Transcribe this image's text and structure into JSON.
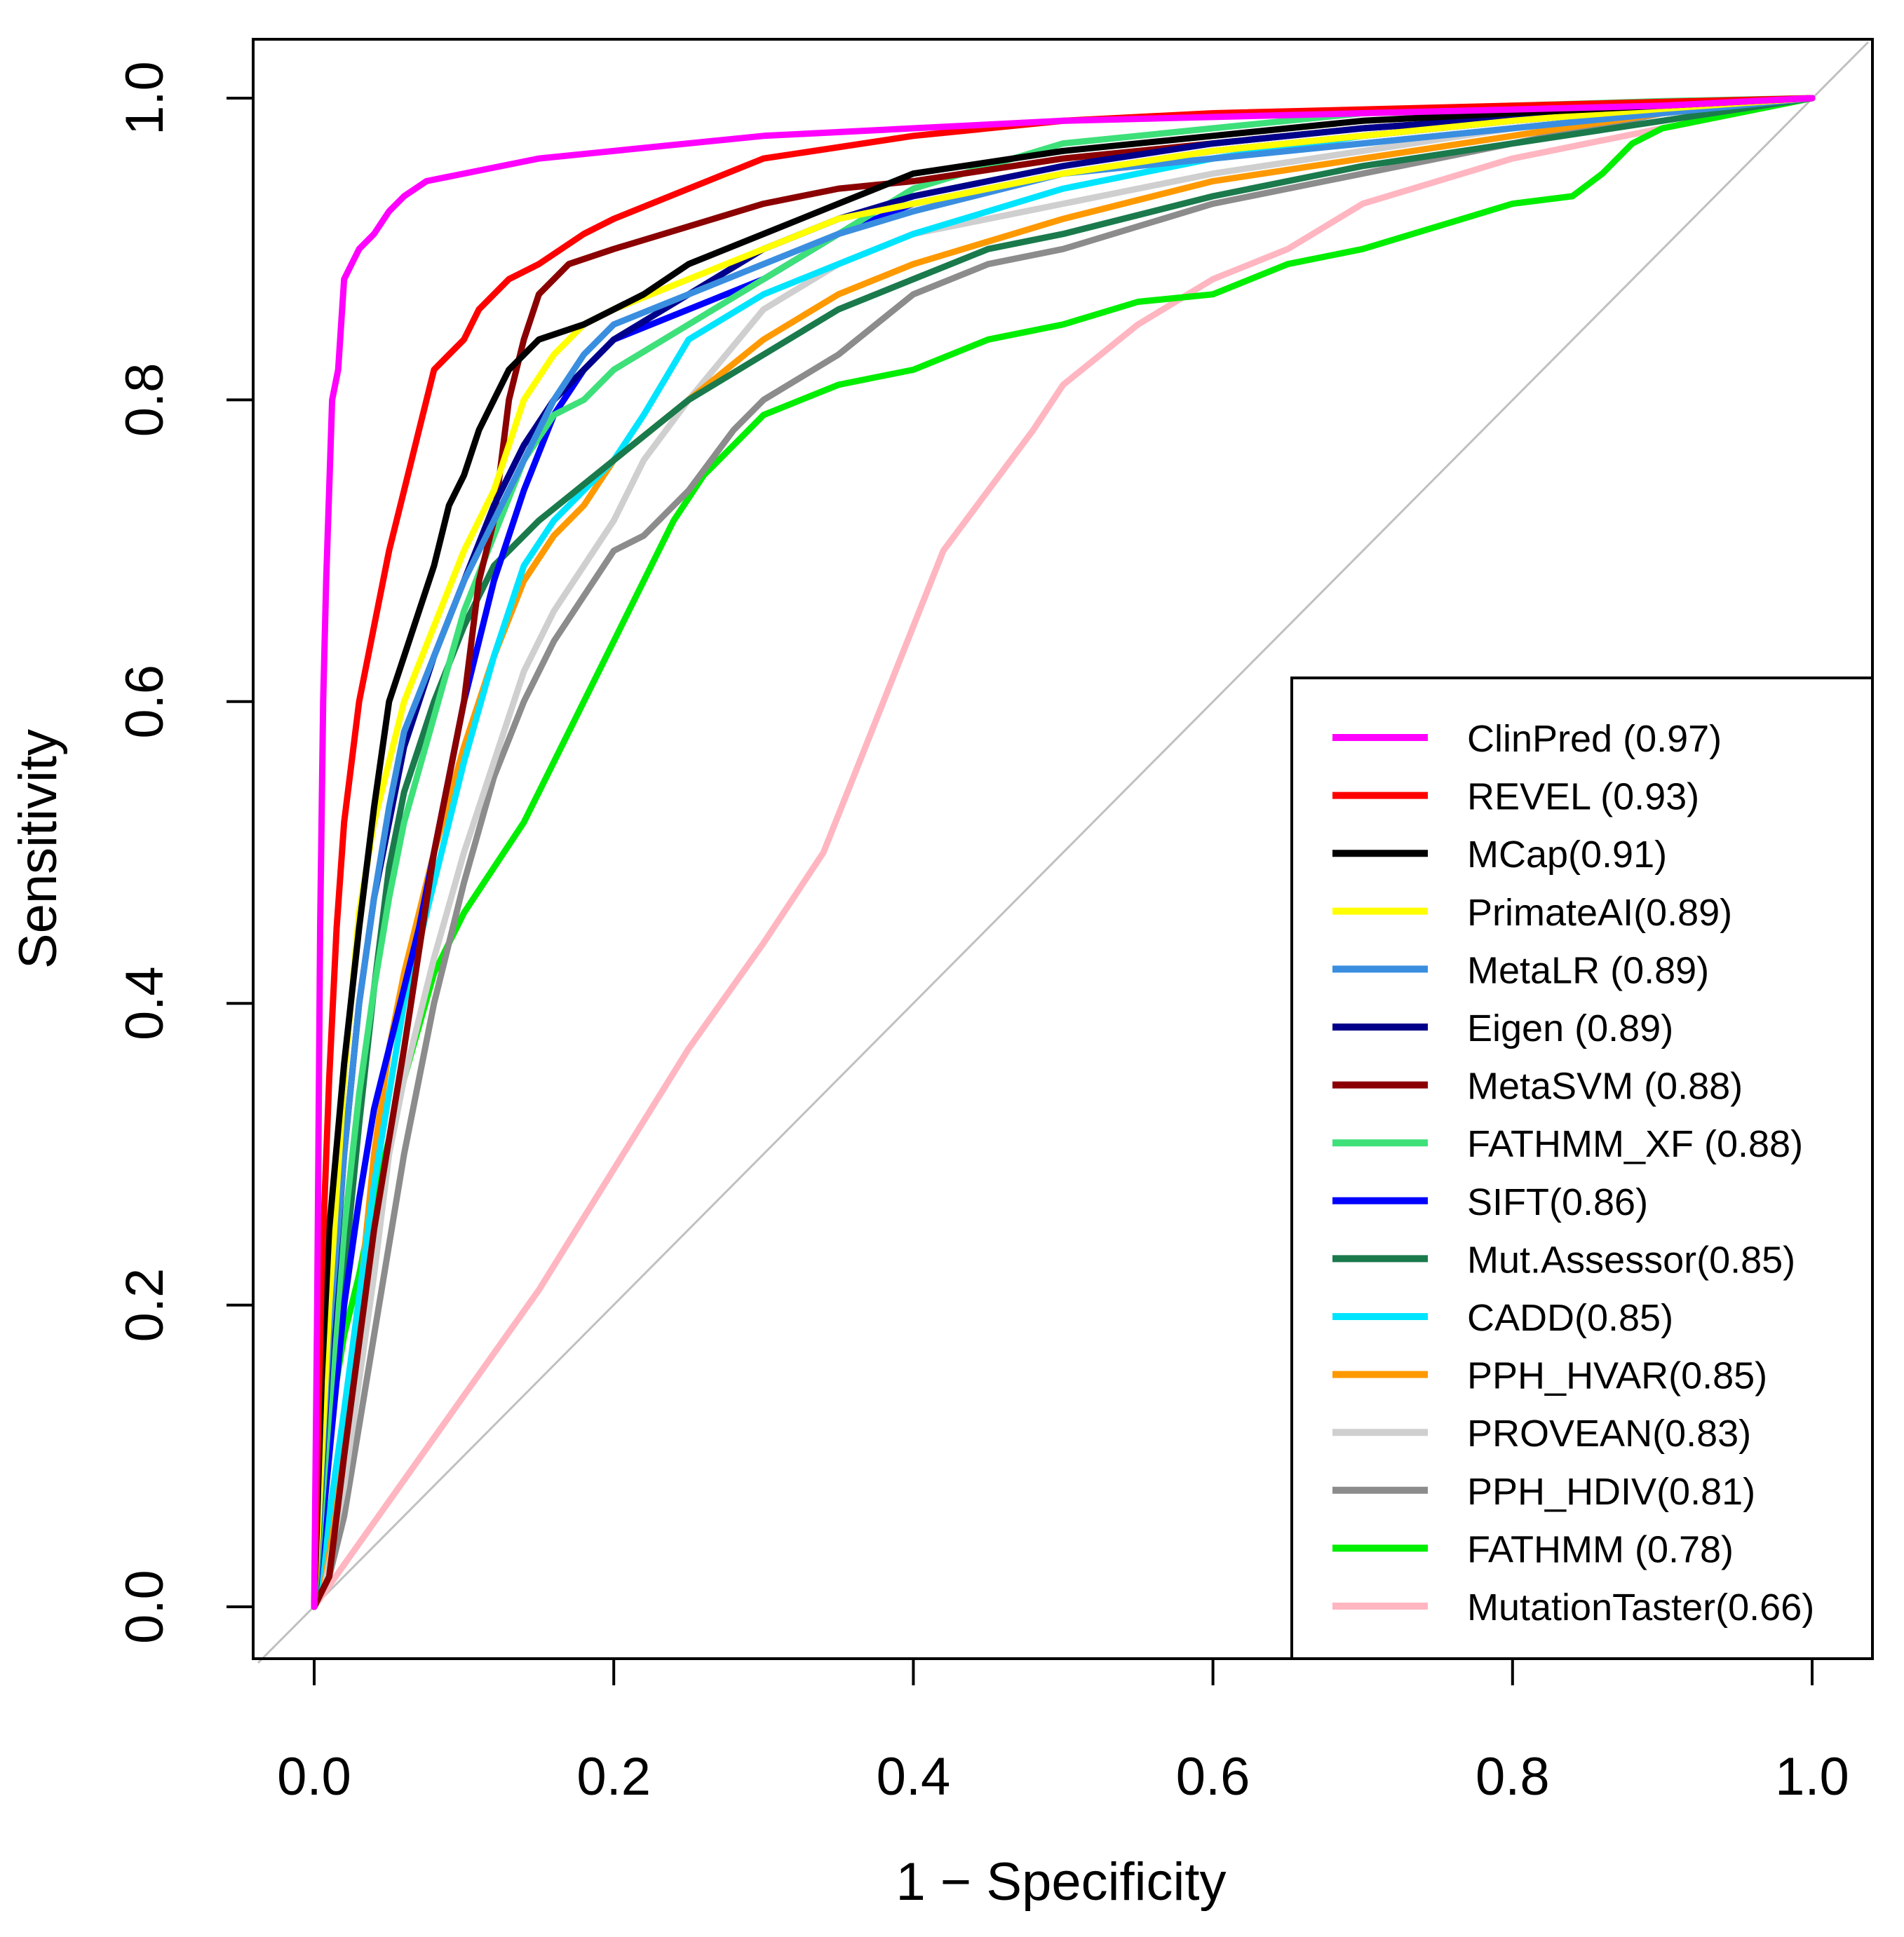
{
  "chart_data": {
    "type": "line",
    "title": "",
    "xlabel": "1 − Specificity",
    "ylabel": "Sensitivity",
    "xlim": [
      -0.04,
      1.04
    ],
    "ylim": [
      -0.04,
      1.04
    ],
    "x_ticks": [
      "0.0",
      "0.2",
      "0.4",
      "0.6",
      "0.8",
      "1.0"
    ],
    "y_ticks": [
      "0.0",
      "0.2",
      "0.4",
      "0.6",
      "0.8",
      "1.0"
    ],
    "grid": false,
    "legend_position": "bottom-right",
    "reference_line": {
      "x": [
        0,
        1
      ],
      "y": [
        0,
        1
      ],
      "color": "#c0c0c0"
    },
    "series": [
      {
        "name": "ClinPred (0.97)",
        "color": "#ff00ff",
        "x": [
          0,
          0.002,
          0.004,
          0.006,
          0.008,
          0.012,
          0.016,
          0.02,
          0.03,
          0.04,
          0.05,
          0.06,
          0.075,
          0.1,
          0.15,
          0.2,
          0.3,
          0.4,
          0.5,
          0.7,
          0.9,
          1.0
        ],
        "y": [
          0,
          0.2,
          0.45,
          0.6,
          0.68,
          0.8,
          0.82,
          0.88,
          0.9,
          0.91,
          0.925,
          0.935,
          0.945,
          0.95,
          0.96,
          0.965,
          0.975,
          0.98,
          0.985,
          0.99,
          0.995,
          1.0
        ]
      },
      {
        "name": "REVEL (0.93)",
        "color": "#ff0000",
        "x": [
          0,
          0.005,
          0.01,
          0.015,
          0.02,
          0.03,
          0.04,
          0.05,
          0.06,
          0.07,
          0.08,
          0.09,
          0.1,
          0.11,
          0.13,
          0.15,
          0.18,
          0.2,
          0.25,
          0.3,
          0.4,
          0.5,
          0.6,
          0.8,
          1.0
        ],
        "y": [
          0,
          0.22,
          0.35,
          0.45,
          0.52,
          0.6,
          0.65,
          0.7,
          0.74,
          0.78,
          0.82,
          0.83,
          0.84,
          0.86,
          0.88,
          0.89,
          0.91,
          0.92,
          0.94,
          0.96,
          0.975,
          0.985,
          0.99,
          0.995,
          1.0
        ]
      },
      {
        "name": "MCap(0.91)",
        "color": "#000000",
        "x": [
          0,
          0.005,
          0.01,
          0.02,
          0.03,
          0.04,
          0.05,
          0.06,
          0.07,
          0.08,
          0.09,
          0.1,
          0.11,
          0.12,
          0.13,
          0.15,
          0.18,
          0.2,
          0.22,
          0.25,
          0.3,
          0.35,
          0.4,
          0.5,
          0.6,
          0.7,
          0.8,
          0.9,
          1.0
        ],
        "y": [
          0,
          0.15,
          0.25,
          0.36,
          0.45,
          0.53,
          0.6,
          0.63,
          0.66,
          0.69,
          0.73,
          0.75,
          0.78,
          0.8,
          0.82,
          0.84,
          0.85,
          0.86,
          0.87,
          0.89,
          0.91,
          0.93,
          0.95,
          0.965,
          0.975,
          0.985,
          0.99,
          0.995,
          1.0
        ]
      },
      {
        "name": "PrimateAI(0.89)",
        "color": "#ffff00",
        "x": [
          0,
          0.01,
          0.02,
          0.03,
          0.04,
          0.05,
          0.06,
          0.08,
          0.1,
          0.12,
          0.14,
          0.16,
          0.18,
          0.2,
          0.25,
          0.3,
          0.35,
          0.4,
          0.5,
          0.6,
          0.7,
          0.8,
          0.9,
          1.0
        ],
        "y": [
          0,
          0.2,
          0.35,
          0.46,
          0.52,
          0.56,
          0.6,
          0.65,
          0.7,
          0.74,
          0.8,
          0.83,
          0.85,
          0.86,
          0.88,
          0.9,
          0.92,
          0.93,
          0.95,
          0.965,
          0.975,
          0.985,
          0.993,
          1.0
        ]
      },
      {
        "name": "MetaLR (0.89)",
        "color": "#3a8ee0",
        "x": [
          0,
          0.01,
          0.02,
          0.03,
          0.04,
          0.05,
          0.06,
          0.08,
          0.1,
          0.12,
          0.14,
          0.16,
          0.18,
          0.2,
          0.25,
          0.3,
          0.35,
          0.4,
          0.5,
          0.6,
          0.7,
          0.8,
          0.9,
          1.0
        ],
        "y": [
          0,
          0.18,
          0.3,
          0.4,
          0.47,
          0.53,
          0.58,
          0.63,
          0.68,
          0.72,
          0.76,
          0.8,
          0.83,
          0.85,
          0.87,
          0.89,
          0.91,
          0.925,
          0.95,
          0.96,
          0.97,
          0.98,
          0.99,
          1.0
        ]
      },
      {
        "name": "Eigen (0.89)",
        "color": "#00008b",
        "x": [
          0,
          0.01,
          0.02,
          0.03,
          0.04,
          0.05,
          0.06,
          0.08,
          0.1,
          0.12,
          0.14,
          0.16,
          0.18,
          0.2,
          0.25,
          0.3,
          0.35,
          0.4,
          0.5,
          0.6,
          0.7,
          0.8,
          0.9,
          1.0
        ],
        "y": [
          0,
          0.17,
          0.3,
          0.4,
          0.47,
          0.52,
          0.57,
          0.63,
          0.68,
          0.73,
          0.77,
          0.8,
          0.82,
          0.84,
          0.87,
          0.9,
          0.92,
          0.935,
          0.955,
          0.97,
          0.98,
          0.987,
          0.994,
          1.0
        ]
      },
      {
        "name": "MetaSVM (0.88)",
        "color": "#8b0000",
        "x": [
          0,
          0.01,
          0.02,
          0.04,
          0.06,
          0.08,
          0.1,
          0.11,
          0.12,
          0.13,
          0.14,
          0.15,
          0.17,
          0.2,
          0.25,
          0.3,
          0.35,
          0.4,
          0.5,
          0.6,
          0.7,
          0.8,
          0.9,
          1.0
        ],
        "y": [
          0,
          0.02,
          0.1,
          0.25,
          0.37,
          0.5,
          0.6,
          0.68,
          0.72,
          0.8,
          0.84,
          0.87,
          0.89,
          0.9,
          0.915,
          0.93,
          0.94,
          0.945,
          0.96,
          0.97,
          0.98,
          0.987,
          0.994,
          1.0
        ]
      },
      {
        "name": "FATHMM_XF (0.88)",
        "color": "#3ee07a",
        "x": [
          0,
          0.01,
          0.02,
          0.03,
          0.04,
          0.05,
          0.06,
          0.08,
          0.1,
          0.12,
          0.14,
          0.16,
          0.18,
          0.2,
          0.25,
          0.3,
          0.35,
          0.4,
          0.5,
          0.6,
          0.7,
          0.8,
          0.9,
          1.0
        ],
        "y": [
          0,
          0.13,
          0.25,
          0.34,
          0.41,
          0.47,
          0.52,
          0.59,
          0.66,
          0.71,
          0.76,
          0.79,
          0.8,
          0.82,
          0.85,
          0.88,
          0.91,
          0.94,
          0.97,
          0.98,
          0.99,
          0.995,
          0.998,
          1.0
        ]
      },
      {
        "name": "SIFT(0.86)",
        "color": "#0000ff",
        "x": [
          0,
          0.01,
          0.02,
          0.03,
          0.04,
          0.05,
          0.06,
          0.07,
          0.08,
          0.1,
          0.12,
          0.14,
          0.16,
          0.18,
          0.2,
          0.25,
          0.3,
          0.35,
          0.4,
          0.5,
          0.6,
          0.7,
          0.8,
          0.9,
          1.0
        ],
        "y": [
          0,
          0.1,
          0.2,
          0.27,
          0.33,
          0.37,
          0.41,
          0.45,
          0.5,
          0.6,
          0.68,
          0.74,
          0.79,
          0.82,
          0.84,
          0.86,
          0.88,
          0.91,
          0.93,
          0.95,
          0.965,
          0.975,
          0.985,
          0.993,
          1.0
        ]
      },
      {
        "name": "Mut.Assessor(0.85)",
        "color": "#1a7a4c",
        "x": [
          0,
          0.01,
          0.02,
          0.03,
          0.04,
          0.05,
          0.06,
          0.08,
          0.1,
          0.12,
          0.15,
          0.2,
          0.25,
          0.3,
          0.35,
          0.4,
          0.45,
          0.5,
          0.6,
          0.7,
          0.8,
          0.9,
          1.0
        ],
        "y": [
          0,
          0.1,
          0.22,
          0.32,
          0.41,
          0.49,
          0.54,
          0.6,
          0.65,
          0.69,
          0.72,
          0.76,
          0.8,
          0.83,
          0.86,
          0.88,
          0.9,
          0.91,
          0.935,
          0.955,
          0.97,
          0.985,
          1.0
        ]
      },
      {
        "name": "CADD(0.85)",
        "color": "#00e5ff",
        "x": [
          0,
          0.01,
          0.02,
          0.04,
          0.06,
          0.08,
          0.1,
          0.12,
          0.14,
          0.16,
          0.18,
          0.2,
          0.22,
          0.25,
          0.3,
          0.35,
          0.4,
          0.5,
          0.6,
          0.7,
          0.8,
          0.9,
          1.0
        ],
        "y": [
          0,
          0.06,
          0.13,
          0.28,
          0.4,
          0.48,
          0.56,
          0.63,
          0.69,
          0.72,
          0.74,
          0.76,
          0.79,
          0.84,
          0.87,
          0.89,
          0.91,
          0.94,
          0.96,
          0.975,
          0.985,
          0.993,
          1.0
        ]
      },
      {
        "name": "PPH_HVAR(0.85)",
        "color": "#ff9900",
        "x": [
          0,
          0.01,
          0.02,
          0.03,
          0.04,
          0.05,
          0.06,
          0.08,
          0.1,
          0.12,
          0.14,
          0.16,
          0.18,
          0.2,
          0.25,
          0.3,
          0.35,
          0.4,
          0.5,
          0.6,
          0.7,
          0.8,
          0.9,
          1.0
        ],
        "y": [
          0,
          0.05,
          0.12,
          0.2,
          0.3,
          0.37,
          0.42,
          0.5,
          0.57,
          0.63,
          0.68,
          0.71,
          0.73,
          0.76,
          0.8,
          0.84,
          0.87,
          0.89,
          0.92,
          0.945,
          0.96,
          0.975,
          0.99,
          1.0
        ]
      },
      {
        "name": "PROVEAN(0.83)",
        "color": "#cfcfcf",
        "x": [
          0,
          0.01,
          0.02,
          0.03,
          0.04,
          0.05,
          0.06,
          0.08,
          0.1,
          0.12,
          0.14,
          0.16,
          0.18,
          0.2,
          0.22,
          0.25,
          0.3,
          0.35,
          0.4,
          0.5,
          0.6,
          0.7,
          0.8,
          0.9,
          1.0
        ],
        "y": [
          0,
          0.03,
          0.08,
          0.15,
          0.22,
          0.3,
          0.35,
          0.43,
          0.5,
          0.56,
          0.62,
          0.66,
          0.69,
          0.72,
          0.76,
          0.8,
          0.86,
          0.89,
          0.91,
          0.93,
          0.95,
          0.965,
          0.98,
          0.99,
          1.0
        ]
      },
      {
        "name": "PPH_HDIV(0.81)",
        "color": "#8c8c8c",
        "x": [
          0,
          0.01,
          0.02,
          0.03,
          0.04,
          0.05,
          0.06,
          0.08,
          0.1,
          0.12,
          0.14,
          0.16,
          0.18,
          0.2,
          0.22,
          0.25,
          0.28,
          0.3,
          0.35,
          0.4,
          0.45,
          0.5,
          0.6,
          0.7,
          0.8,
          0.9,
          1.0
        ],
        "y": [
          0,
          0.02,
          0.06,
          0.12,
          0.18,
          0.24,
          0.3,
          0.4,
          0.48,
          0.55,
          0.6,
          0.64,
          0.67,
          0.7,
          0.71,
          0.74,
          0.78,
          0.8,
          0.83,
          0.87,
          0.89,
          0.9,
          0.93,
          0.95,
          0.97,
          0.99,
          1.0
        ]
      },
      {
        "name": "FATHMM (0.78)",
        "color": "#00ee00",
        "x": [
          0,
          0.01,
          0.02,
          0.03,
          0.04,
          0.05,
          0.06,
          0.08,
          0.1,
          0.12,
          0.14,
          0.16,
          0.18,
          0.2,
          0.22,
          0.24,
          0.26,
          0.28,
          0.3,
          0.35,
          0.4,
          0.45,
          0.5,
          0.55,
          0.6,
          0.65,
          0.7,
          0.75,
          0.8,
          0.84,
          0.86,
          0.88,
          0.9,
          1.0
        ],
        "y": [
          0,
          0.12,
          0.18,
          0.22,
          0.27,
          0.31,
          0.35,
          0.42,
          0.46,
          0.49,
          0.52,
          0.56,
          0.6,
          0.64,
          0.68,
          0.72,
          0.75,
          0.77,
          0.79,
          0.81,
          0.82,
          0.84,
          0.85,
          0.865,
          0.87,
          0.89,
          0.9,
          0.915,
          0.93,
          0.935,
          0.95,
          0.97,
          0.98,
          1.0
        ]
      },
      {
        "name": "MutationTaster(0.66)",
        "color": "#ffb6c1",
        "x": [
          0,
          0.05,
          0.1,
          0.15,
          0.2,
          0.25,
          0.3,
          0.32,
          0.34,
          0.36,
          0.38,
          0.4,
          0.42,
          0.45,
          0.48,
          0.5,
          0.55,
          0.6,
          0.65,
          0.7,
          0.8,
          0.9,
          1.0
        ],
        "y": [
          0,
          0.07,
          0.14,
          0.21,
          0.29,
          0.37,
          0.44,
          0.47,
          0.5,
          0.55,
          0.6,
          0.65,
          0.7,
          0.74,
          0.78,
          0.81,
          0.85,
          0.88,
          0.9,
          0.93,
          0.96,
          0.98,
          1.0
        ]
      }
    ]
  }
}
